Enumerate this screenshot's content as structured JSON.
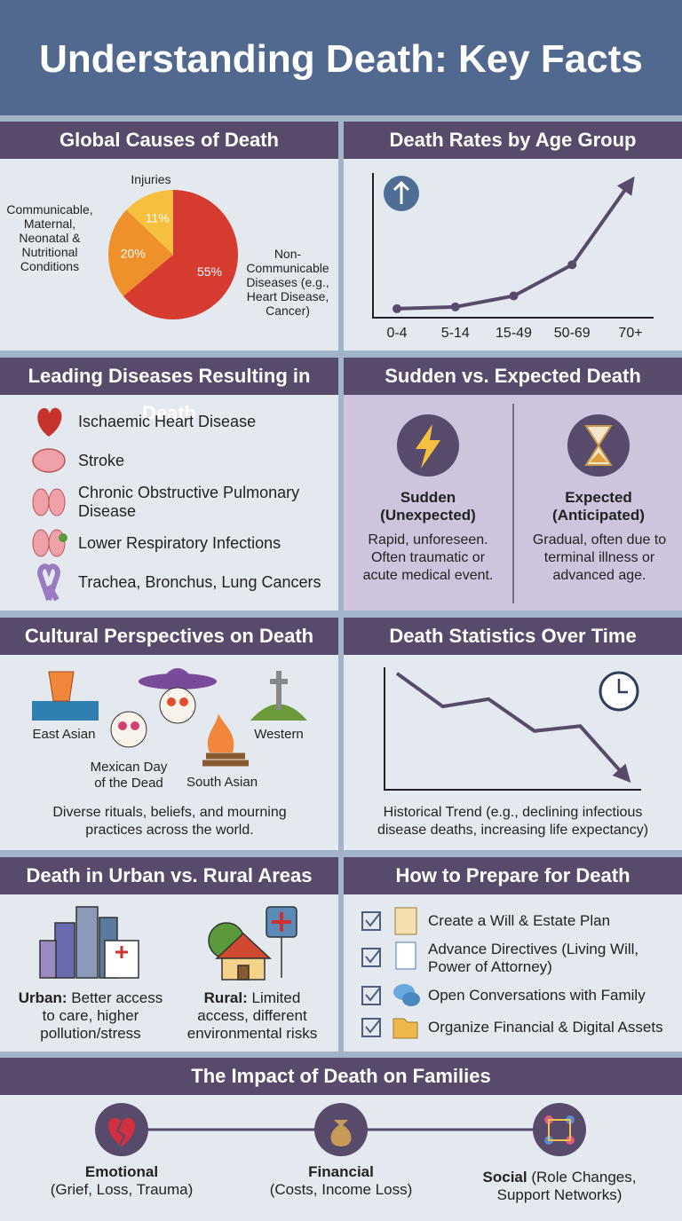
{
  "header": {
    "title": "Understanding Death: Key Facts"
  },
  "chart_data": [
    {
      "type": "pie",
      "title": "Global Causes of Death",
      "categories": [
        "Non-Communicable Diseases (e.g., Heart Disease, Cancer)",
        "Communicable, Maternal, Neonatal & Nutritional Conditions",
        "Injuries"
      ],
      "values": [
        55,
        20,
        11
      ],
      "value_labels": [
        "55%",
        "20%",
        "11%"
      ],
      "colors": [
        "#d63b2f",
        "#f0902a",
        "#f7bf3e"
      ]
    },
    {
      "type": "line",
      "title": "Death Rates by Age Group",
      "categories": [
        "0-4",
        "5-14",
        "15-49",
        "50-69",
        "70+"
      ],
      "values": [
        1,
        2,
        8,
        25,
        70
      ],
      "ylim": [
        0,
        75
      ],
      "color": "#584a6b"
    },
    {
      "type": "line",
      "title": "Death Statistics Over Time",
      "values": [
        95,
        68,
        74,
        48,
        52,
        10
      ],
      "ylim": [
        0,
        100
      ],
      "color": "#584a6b",
      "caption": "Historical Trend (e.g., declining infectious disease deaths, increasing life expectancy)"
    }
  ],
  "diseases": {
    "title": "Leading Diseases Resulting in Death",
    "items": [
      "Ischaemic Heart Disease",
      "Stroke",
      "Chronic Obstructive Pulmonary Disease",
      "Lower Respiratory Infections",
      "Trachea, Bronchus, Lung Cancers"
    ]
  },
  "sudden": {
    "title": "Sudden vs. Expected Death",
    "sudden": {
      "label": "Sudden (Unexpected)",
      "text": "Rapid, unforeseen. Often traumatic or acute medical event."
    },
    "expected": {
      "label": "Expected (Anticipated)",
      "text": "Gradual, often due to terminal illness or advanced age."
    }
  },
  "cultural": {
    "title": "Cultural Perspectives on Death",
    "labels": [
      "East Asian",
      "Mexican Day of the Dead",
      "South Asian",
      "Western"
    ],
    "caption": "Diverse rituals, beliefs, and mourning practices across the world."
  },
  "urban": {
    "title": "Death in Urban vs. Rural Areas",
    "urban": {
      "label": "Urban:",
      "text": "Better access to care, higher pollution/stress"
    },
    "rural": {
      "label": "Rural:",
      "text": "Limited access, different environmental risks"
    }
  },
  "prepare": {
    "title": "How to Prepare for Death",
    "items": [
      "Create a Will & Estate Plan",
      "Advance Directives (Living Will, Power of Attorney)",
      "Open Conversations with Family",
      "Organize Financial & Digital Assets"
    ]
  },
  "impact": {
    "title": "The Impact of Death on Families",
    "items": [
      {
        "label": "Emotional",
        "text": "(Grief, Loss, Trauma)"
      },
      {
        "label": "Financial",
        "text": "(Costs, Income Loss)"
      },
      {
        "label": "Social",
        "text": "(Role Changes, Support Networks)"
      }
    ]
  }
}
